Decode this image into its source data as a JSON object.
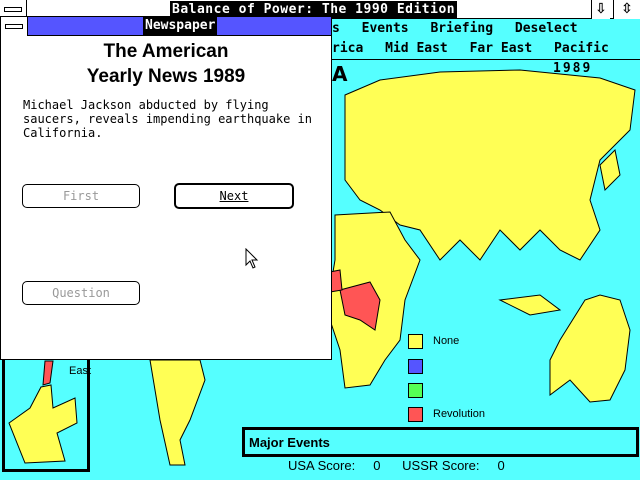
{
  "app": {
    "title": "Balance of Power: The 1990 Edition",
    "arrow_down": "⇩",
    "arrow_updown": "⇳"
  },
  "menu": {
    "row1": [
      "s",
      "Events",
      "Briefing",
      "Deselect"
    ],
    "row2": [
      "rica",
      "Mid East",
      "Far East",
      "Pacific"
    ]
  },
  "map": {
    "year": "1989",
    "region_heading": "A",
    "inset_label": "East"
  },
  "legend": [
    {
      "label": "None",
      "color": "#ffff55"
    },
    {
      "label": "",
      "color": "#5555ff"
    },
    {
      "label": "",
      "color": "#55ff55"
    },
    {
      "label": "Revolution",
      "color": "#ff5555"
    }
  ],
  "events": {
    "title": "Major Events"
  },
  "scores": {
    "usa_label": "USA Score:",
    "usa": "0",
    "ussr_label": "USSR Score:",
    "ussr": "0"
  },
  "newspaper": {
    "window_title": "Newspaper",
    "headline_1": "The American",
    "headline_2": "Yearly News 1989",
    "story": "Michael Jackson abducted by flying saucers, reveals impending earthquake in California.",
    "buttons": {
      "first": "First",
      "next": "Next",
      "question": "Question"
    }
  },
  "colors": {
    "sea": "#55ffff",
    "land": "#ffff55",
    "revolution": "#ff5555",
    "title_bar": "#5555ff"
  }
}
